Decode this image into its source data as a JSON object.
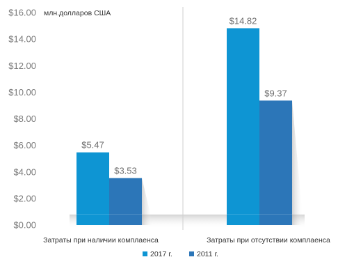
{
  "chart_data": {
    "type": "bar",
    "unit_label": "млн.долларов США",
    "categories": [
      "Затраты при наличии комплаенса",
      "Затраты при отсутствии комплаенса"
    ],
    "series": [
      {
        "name": "2017 г.",
        "values": [
          5.47,
          14.82
        ],
        "value_labels": [
          "$5.47",
          "$14.82"
        ],
        "color": "#0e95d3"
      },
      {
        "name": "2011 г.",
        "values": [
          3.53,
          9.37
        ],
        "value_labels": [
          "$3.53",
          "$9.37"
        ],
        "color": "#2c76b8"
      }
    ],
    "ylim": [
      0,
      16
    ],
    "yticks": [
      0,
      2,
      4,
      6,
      8,
      10,
      12,
      14,
      16
    ],
    "ytick_labels": [
      "$0.00",
      "$2.00",
      "$4.00",
      "$6.00",
      "$8.00",
      "$10.00",
      "$12.00",
      "$14.00",
      "$16.00"
    ],
    "legend_position": "bottom",
    "grid": false
  }
}
